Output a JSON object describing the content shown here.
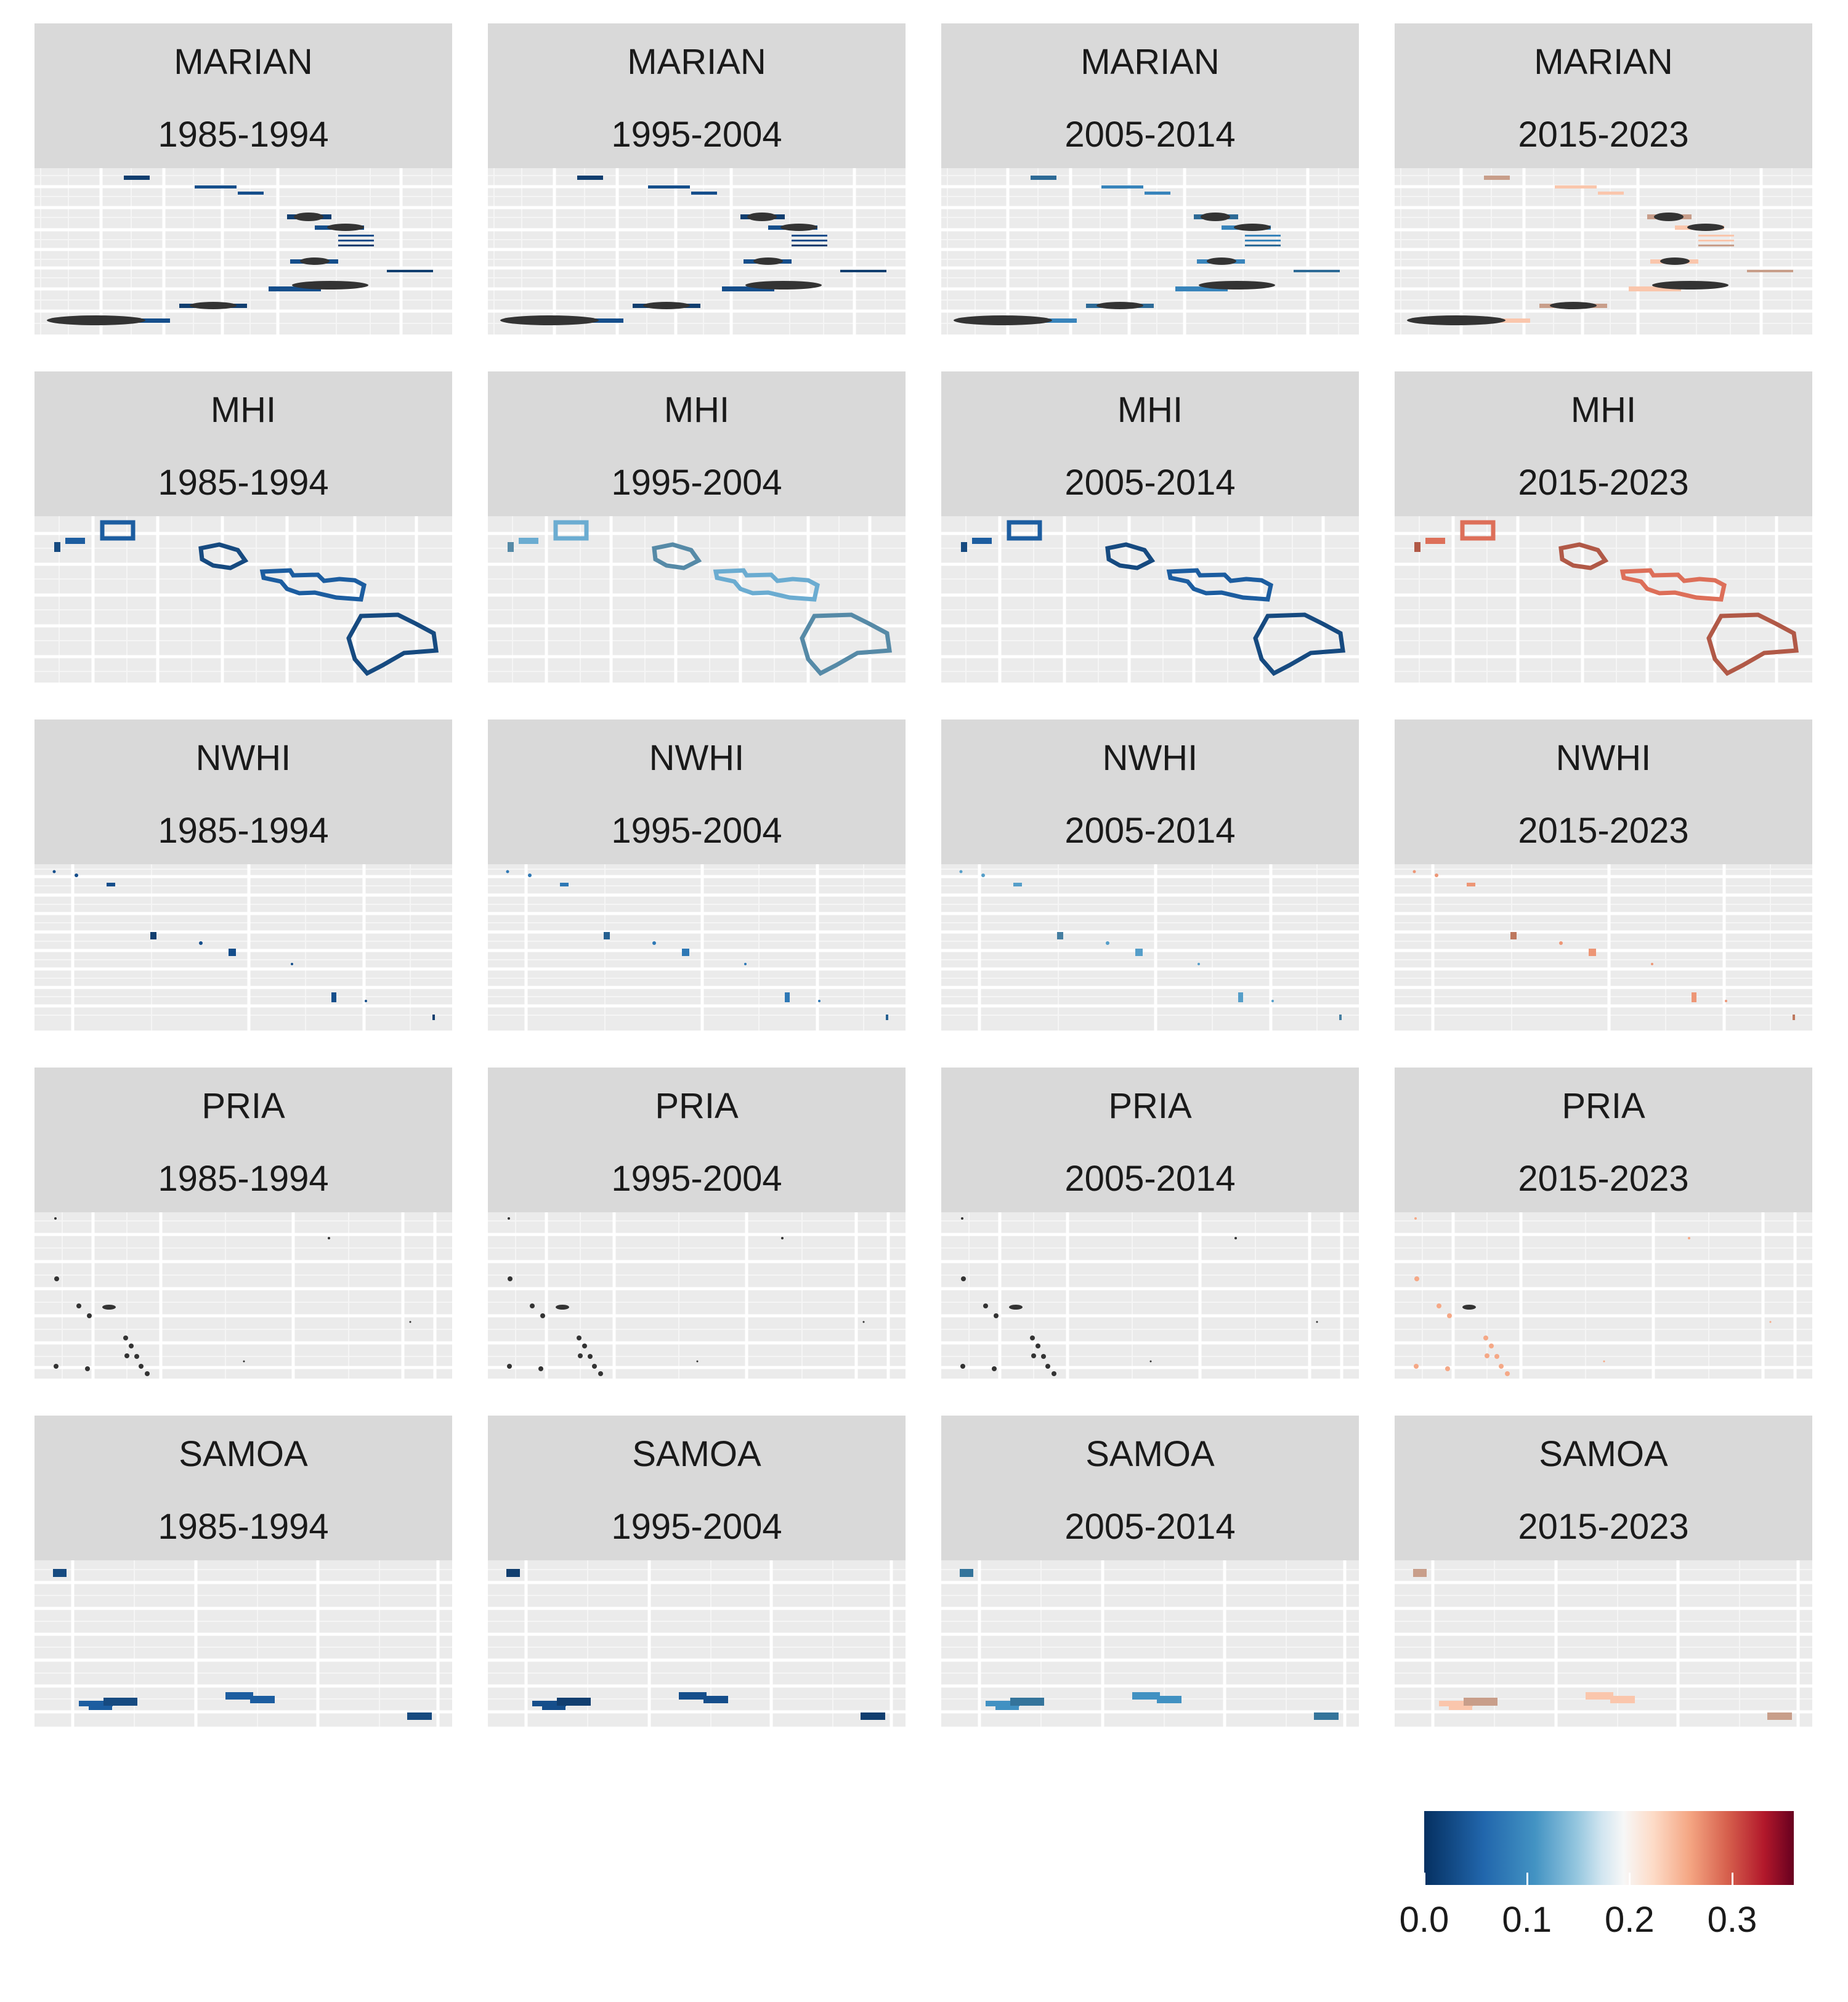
{
  "chart_data": {
    "type": "heatmap",
    "title": "",
    "xlabel": "",
    "ylabel": "",
    "rows": [
      "MARIAN",
      "MHI",
      "NWHI",
      "PRIA",
      "SAMOA"
    ],
    "columns": [
      "1985-1994",
      "1995-2004",
      "2005-2014",
      "2015-2023"
    ],
    "panels": [
      {
        "region": "MARIAN",
        "period": "1985-1994",
        "value": 0.02
      },
      {
        "region": "MARIAN",
        "period": "1995-2004",
        "value": 0.02
      },
      {
        "region": "MARIAN",
        "period": "2005-2014",
        "value": 0.06
      },
      {
        "region": "MARIAN",
        "period": "2015-2023",
        "value": 0.23
      },
      {
        "region": "MHI",
        "period": "1985-1994",
        "value": 0.03
      },
      {
        "region": "MHI",
        "period": "1995-2004",
        "value": 0.09
      },
      {
        "region": "MHI",
        "period": "2005-2014",
        "value": 0.03
      },
      {
        "region": "MHI",
        "period": "2015-2023",
        "value": 0.28
      },
      {
        "region": "NWHI",
        "period": "1985-1994",
        "value": 0.02
      },
      {
        "region": "NWHI",
        "period": "1995-2004",
        "value": 0.05
      },
      {
        "region": "NWHI",
        "period": "2005-2014",
        "value": 0.08
      },
      {
        "region": "NWHI",
        "period": "2015-2023",
        "value": 0.26
      },
      {
        "region": "PRIA",
        "period": "1985-1994",
        "value": null
      },
      {
        "region": "PRIA",
        "period": "1995-2004",
        "value": null
      },
      {
        "region": "PRIA",
        "period": "2005-2014",
        "value": null
      },
      {
        "region": "PRIA",
        "period": "2015-2023",
        "value": 0.25
      },
      {
        "region": "SAMOA",
        "period": "1985-1994",
        "value": 0.03
      },
      {
        "region": "SAMOA",
        "period": "1995-2004",
        "value": 0.02
      },
      {
        "region": "SAMOA",
        "period": "2005-2014",
        "value": 0.07
      },
      {
        "region": "SAMOA",
        "period": "2015-2023",
        "value": 0.23
      }
    ],
    "color_scale": {
      "name": "",
      "min": 0.0,
      "max": 0.36,
      "breaks": [
        0.0,
        0.1,
        0.2,
        0.3
      ],
      "break_labels": [
        "0.0",
        "0.1",
        "0.2",
        "0.3"
      ],
      "palette": [
        "#053061",
        "#2166ac",
        "#4393c3",
        "#92c5de",
        "#d1e5f0",
        "#f7f7f7",
        "#fddbc7",
        "#f4a582",
        "#d6604d",
        "#b2182b",
        "#67001f"
      ],
      "na_color": "#333333"
    },
    "legend_position": "bottom-right",
    "grid": true
  }
}
